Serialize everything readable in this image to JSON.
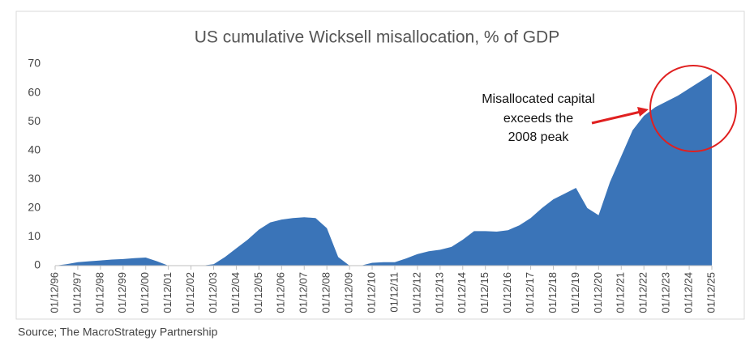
{
  "chart_data": {
    "type": "area",
    "title": "US cumulative Wicksell misallocation, % of GDP",
    "source": "Source; The MacroStrategy Partnership",
    "annotation": [
      "Misallocated capital",
      "exceeds the",
      "2008 peak"
    ],
    "categories": [
      "01/12/96",
      null,
      "01/12/97",
      null,
      "01/12/98",
      null,
      "01/12/99",
      null,
      "01/12/00",
      null,
      "01/12/01",
      null,
      "01/12/02",
      null,
      "01/12/03",
      null,
      "01/12/04",
      null,
      "01/12/05",
      null,
      "01/12/06",
      null,
      "01/12/07",
      null,
      "01/12/08",
      null,
      "01/12/09",
      null,
      "01/12/10",
      null,
      "01/12/11",
      null,
      "01/12/12",
      null,
      "01/12/13",
      null,
      "01/12/14",
      null,
      "01/12/15",
      null,
      "01/12/16",
      null,
      "01/12/17",
      null,
      "01/12/18",
      null,
      "01/12/19",
      null,
      "01/12/20",
      null,
      "01/12/21",
      null,
      "01/12/22",
      null,
      "01/12/23",
      null,
      "01/12/24",
      null,
      "01/12/25"
    ],
    "values": [
      0,
      0.5,
      1.2,
      1.5,
      1.8,
      2.1,
      2.3,
      2.6,
      2.8,
      1.5,
      0,
      0,
      0,
      0,
      0.5,
      3,
      6,
      9,
      12.5,
      15,
      16,
      16.5,
      16.8,
      16.5,
      13,
      3,
      0,
      0,
      1,
      1.2,
      1.2,
      2.5,
      4,
      5,
      5.5,
      6.5,
      9,
      12,
      12,
      11.8,
      12.3,
      14,
      16.5,
      20,
      23,
      25,
      27,
      20,
      17.5,
      29,
      38,
      47,
      52,
      55,
      57,
      59,
      61.5,
      64,
      66.5
    ],
    "color": "#3a74b8",
    "ylim": [
      0,
      70
    ],
    "yticks": [
      0,
      10,
      20,
      30,
      40,
      50,
      60,
      70
    ],
    "grid": false
  }
}
